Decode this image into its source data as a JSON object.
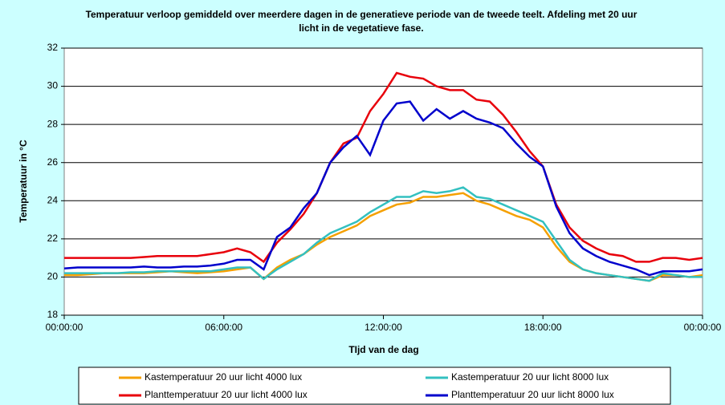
{
  "chart_data": {
    "type": "line",
    "title": "Temperatuur verloop gemiddeld over meerdere dagen in de generatieve periode van de tweede teelt.   Afdeling met 20 uur licht in de vegetatieve fase.",
    "x_label": "TIjd van de dag",
    "y_label": "Temperatuur in °C",
    "x": [
      0,
      0.5,
      1,
      1.5,
      2,
      2.5,
      3,
      3.5,
      4,
      4.5,
      5,
      5.5,
      6,
      6.5,
      7,
      7.5,
      8,
      8.5,
      9,
      9.5,
      10,
      10.5,
      11,
      11.5,
      12,
      12.5,
      13,
      13.5,
      14,
      14.5,
      15,
      15.5,
      16,
      16.5,
      17,
      17.5,
      18,
      18.5,
      19,
      19.5,
      20,
      20.5,
      21,
      21.5,
      22,
      22.5,
      23,
      23.5,
      24
    ],
    "xlim": [
      0,
      24
    ],
    "xticks": [
      {
        "value": 0,
        "label": "00:00:00"
      },
      {
        "value": 6,
        "label": "06:00:00"
      },
      {
        "value": 12,
        "label": "12:00:00"
      },
      {
        "value": 18,
        "label": "18:00:00"
      },
      {
        "value": 24,
        "label": "00:00:00"
      }
    ],
    "ylim": [
      18,
      32
    ],
    "yticks": [
      18,
      20,
      22,
      24,
      26,
      28,
      30,
      32
    ],
    "grid": true,
    "series": [
      {
        "name": "Kastemperatuur 20 uur licht 4000 lux",
        "color": "#f5a000",
        "values": [
          20.1,
          20.1,
          20.15,
          20.2,
          20.2,
          20.2,
          20.2,
          20.25,
          20.3,
          20.25,
          20.2,
          20.25,
          20.3,
          20.4,
          20.5,
          19.9,
          20.5,
          20.9,
          21.2,
          21.7,
          22.1,
          22.4,
          22.7,
          23.2,
          23.5,
          23.8,
          23.9,
          24.2,
          24.2,
          24.3,
          24.4,
          24.0,
          23.8,
          23.5,
          23.2,
          23.0,
          22.6,
          21.6,
          20.8,
          20.4,
          20.2,
          20.1,
          20.0,
          19.9,
          19.8,
          20.1,
          20.1,
          20.0,
          20.1
        ]
      },
      {
        "name": "Kastemperatuur 20 uur licht 8000 lux",
        "color": "#33c0c0",
        "values": [
          20.2,
          20.2,
          20.2,
          20.2,
          20.2,
          20.25,
          20.25,
          20.3,
          20.3,
          20.3,
          20.3,
          20.3,
          20.4,
          20.5,
          20.5,
          19.9,
          20.4,
          20.8,
          21.2,
          21.8,
          22.3,
          22.6,
          22.9,
          23.4,
          23.8,
          24.2,
          24.2,
          24.5,
          24.4,
          24.5,
          24.7,
          24.2,
          24.1,
          23.8,
          23.5,
          23.2,
          22.9,
          21.9,
          20.9,
          20.4,
          20.2,
          20.1,
          20.0,
          19.9,
          19.8,
          20.2,
          20.1,
          20.0,
          20.0
        ]
      },
      {
        "name": "Planttemperatuur 20 uur licht 4000 lux",
        "color": "#e8000b",
        "values": [
          21.0,
          21.0,
          21.0,
          21.0,
          21.0,
          21.0,
          21.05,
          21.1,
          21.1,
          21.1,
          21.1,
          21.2,
          21.3,
          21.5,
          21.3,
          20.8,
          21.8,
          22.5,
          23.3,
          24.4,
          26.0,
          27.0,
          27.3,
          28.7,
          29.6,
          30.7,
          30.5,
          30.4,
          30.0,
          29.8,
          29.8,
          29.3,
          29.2,
          28.5,
          27.6,
          26.6,
          25.8,
          23.8,
          22.6,
          21.9,
          21.5,
          21.2,
          21.1,
          20.8,
          20.8,
          21.0,
          21.0,
          20.9,
          21.0
        ]
      },
      {
        "name": "Planttemperatuur 20 uur licht 8000 lux",
        "color": "#0000cc",
        "values": [
          20.45,
          20.5,
          20.5,
          20.5,
          20.5,
          20.5,
          20.55,
          20.5,
          20.5,
          20.55,
          20.55,
          20.6,
          20.7,
          20.9,
          20.9,
          20.4,
          22.1,
          22.6,
          23.6,
          24.4,
          26.0,
          26.8,
          27.4,
          26.4,
          28.2,
          29.1,
          29.2,
          28.2,
          28.8,
          28.3,
          28.7,
          28.3,
          28.1,
          27.8,
          27.0,
          26.3,
          25.8,
          23.7,
          22.3,
          21.5,
          21.1,
          20.8,
          20.6,
          20.4,
          20.1,
          20.3,
          20.3,
          20.3,
          20.4
        ]
      }
    ]
  }
}
